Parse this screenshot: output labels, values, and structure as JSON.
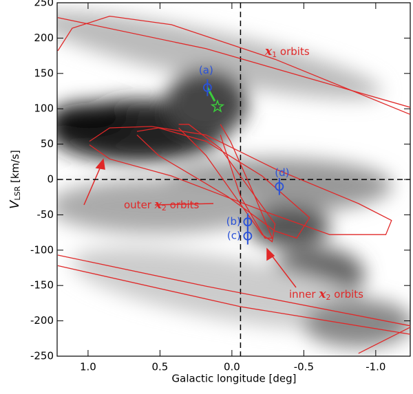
{
  "chart_data": {
    "type": "pv-diagram",
    "xlabel": "Galactic longitude [deg]",
    "ylabel": {
      "var": "V",
      "sub": "LSR",
      "suffix": " [km/s]"
    },
    "xlim": [
      1.215,
      -1.24
    ],
    "ylim": [
      -250,
      250
    ],
    "xticks": [
      {
        "value": 1,
        "label": "1.0"
      },
      0.5,
      {
        "value": 0,
        "label": "0.0"
      },
      -0.5,
      {
        "value": -1,
        "label": "-1.0"
      }
    ],
    "yticks": [
      -250,
      -200,
      -150,
      -100,
      -50,
      0,
      50,
      100,
      150,
      200,
      250
    ],
    "vline": -0.06,
    "hline": 0,
    "orbit_color": "#e02828",
    "orbits": [
      {
        "x": [
          1.21,
          1.11,
          0.85,
          0.42,
          -0.3,
          -1.24
        ],
        "y": [
          182,
          214,
          231,
          219,
          170,
          92
        ]
      },
      {
        "x": [
          1.21,
          0.18,
          -1.24
        ],
        "y": [
          229,
          185,
          102
        ]
      },
      {
        "x": [
          1.21,
          0.18,
          -1.24
        ],
        "y": [
          -107,
          -151,
          -207
        ]
      },
      {
        "x": [
          1.21,
          -0.06,
          -1.24
        ],
        "y": [
          -122,
          -180,
          -219
        ]
      },
      {
        "x": [
          -0.88,
          -1.24
        ],
        "y": [
          -246,
          -209
        ]
      },
      {
        "x": [
          0.99,
          0.85,
          0.56,
          0.18,
          -0.3,
          -0.88,
          -1.11,
          -1.07,
          -0.68,
          -0.21,
          0.42,
          0.85,
          0.99
        ],
        "y": [
          54,
          73,
          75,
          63,
          15,
          -34,
          -58,
          -78,
          -78,
          -44,
          5,
          29,
          49
        ]
      },
      {
        "x": [
          0.66,
          0.51,
          0.18,
          -0.21,
          -0.54,
          -0.45,
          -0.3,
          0.03,
          0.51,
          0.66
        ],
        "y": [
          68,
          73,
          54,
          5,
          -54,
          -83,
          -73,
          -24,
          34,
          63
        ]
      },
      {
        "x": [
          0.37,
          0.3,
          0.08,
          -0.3,
          -0.28,
          -0.21,
          0.18,
          0.37
        ],
        "y": [
          78,
          78,
          44,
          -63,
          -88,
          -78,
          34,
          73
        ]
      },
      {
        "x": [
          0.08,
          0.01,
          -0.16,
          -0.28,
          -0.23,
          -0.06,
          0.08
        ],
        "y": [
          78,
          54,
          -24,
          -83,
          -83,
          -24,
          63
        ]
      }
    ],
    "points": {
      "color": "#2a52d8",
      "labels": [
        "(a)",
        "(b)",
        "(c)",
        "(d)"
      ],
      "x": [
        0.17,
        -0.11,
        -0.11,
        -0.33
      ],
      "y": [
        130,
        -60,
        -80,
        -10
      ],
      "yerr": [
        12,
        12,
        12,
        12
      ]
    },
    "star": {
      "x": 0.1,
      "y": 103,
      "color": "#3ccc3c"
    },
    "annotations": [
      {
        "var": "x",
        "sub": "1",
        "suffix": " orbits"
      },
      {
        "prefix": "outer ",
        "var": "x",
        "sub": "2",
        "suffix": " orbits"
      },
      {
        "prefix": "inner ",
        "var": "x",
        "sub": "2",
        "suffix": " orbits"
      }
    ]
  }
}
